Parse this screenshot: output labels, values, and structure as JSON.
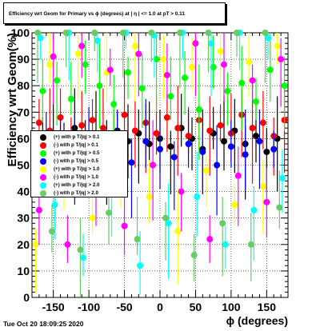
{
  "title": "Efficiency wrt Geom for Primary vs ϕ (degrees) at | η | <= 1.0 at pT > 0.11",
  "timestamp": "Tue Oct 20 18:09:25 2020",
  "colors": {
    "black": "#000000",
    "red": "#ff0000",
    "green": "#00ff00",
    "blue": "#0000ff",
    "yellow": "#ffff00",
    "magenta": "#ff00ff",
    "cyan": "#00ffff",
    "lightgreen": "#66cc66"
  },
  "chart_data": {
    "type": "scatter",
    "title": "Efficiency wrt Geom for Primary vs ϕ (degrees) at | η | <= 1.0 at pT > 0.11",
    "xlabel": "ϕ (degrees)",
    "ylabel": "Efficiency wrt Geom(%)",
    "xlim": [
      -180,
      180
    ],
    "ylim": [
      0,
      100
    ],
    "xticks": [
      -150,
      -100,
      -50,
      0,
      50,
      100,
      150
    ],
    "yticks": [
      0,
      10,
      20,
      30,
      40,
      50,
      60,
      70,
      80,
      90,
      100
    ],
    "grid": true,
    "legend_position": "left-middle",
    "series": [
      {
        "name": "(+) with p T/|q| > 0.1",
        "color": "#000000",
        "x": [
          -165,
          -150,
          -135,
          -120,
          -105,
          -90,
          -75,
          -60,
          -45,
          -30,
          -15,
          0,
          15,
          30,
          45,
          60,
          75,
          90,
          105,
          120,
          135,
          150,
          165
        ],
        "y": [
          62,
          60,
          58,
          64,
          57,
          61,
          55,
          63,
          59,
          62,
          58,
          60,
          57,
          64,
          60,
          56,
          62,
          59,
          63,
          58,
          61,
          55,
          60
        ]
      },
      {
        "name": "(-) with p T/|q| > 0.1",
        "color": "#ff0000",
        "x": [
          -170,
          -155,
          -140,
          -125,
          -110,
          -95,
          -80,
          -65,
          -50,
          -35,
          -20,
          -5,
          10,
          25,
          40,
          55,
          70,
          85,
          100,
          115,
          130,
          145,
          160,
          175
        ],
        "y": [
          66,
          63,
          68,
          62,
          65,
          67,
          64,
          61,
          69,
          63,
          66,
          62,
          68,
          64,
          61,
          67,
          63,
          65,
          62,
          69,
          64,
          66,
          61,
          67
        ]
      },
      {
        "name": "(+) with p T/|q| > 0.5",
        "color": "#00ff00",
        "x": [
          -165,
          -145,
          -125,
          -105,
          -85,
          -65,
          -45,
          -25,
          -5,
          15,
          35,
          55,
          75,
          95,
          115,
          135,
          155,
          175
        ],
        "y": [
          78,
          82,
          75,
          88,
          80,
          73,
          85,
          79,
          90,
          76,
          83,
          71,
          87,
          78,
          81,
          74,
          86,
          80
        ]
      },
      {
        "name": "(-) with p T/|q| > 0.5",
        "color": "#0000ff",
        "x": [
          -160,
          -140,
          -120,
          -100,
          -80,
          -60,
          -40,
          -20,
          0,
          20,
          40,
          60,
          80,
          100,
          120,
          140,
          160
        ],
        "y": [
          55,
          58,
          52,
          60,
          54,
          57,
          51,
          59,
          56,
          53,
          58,
          55,
          50,
          57,
          54,
          59,
          56
        ]
      },
      {
        "name": "(+) with p T/|q| > 1.0",
        "color": "#ffff00",
        "x": [
          -175,
          -155,
          -135,
          -115,
          -95,
          -75,
          -55,
          -35,
          -15,
          5,
          25,
          45,
          65,
          85,
          105,
          125,
          145,
          165
        ],
        "y": [
          20,
          88,
          45,
          92,
          30,
          85,
          50,
          95,
          38,
          90,
          25,
          87,
          48,
          93,
          35,
          89,
          42,
          95
        ]
      },
      {
        "name": "(-) with p T/|q| > 1.0",
        "color": "#ff00ff",
        "x": [
          -170,
          -150,
          -130,
          -110,
          -90,
          -70,
          -50,
          -30,
          -10,
          10,
          30,
          50,
          70,
          90,
          110,
          130,
          150,
          170
        ],
        "y": [
          33,
          91,
          20,
          95,
          44,
          86,
          27,
          92,
          50,
          84,
          40,
          96,
          22,
          88,
          46,
          82,
          36,
          90
        ]
      },
      {
        "name": "(+) with p T/|q| > 2.0",
        "color": "#00ffff",
        "x": [
          -168,
          -148,
          -128,
          -108,
          -88,
          -68,
          -48,
          -28,
          -8,
          12,
          32,
          52,
          72,
          92,
          112,
          132,
          152,
          172
        ],
        "y": [
          98,
          35,
          100,
          15,
          97,
          40,
          100,
          12,
          99,
          28,
          100,
          38,
          96,
          20,
          100,
          33,
          98,
          45
        ]
      },
      {
        "name": "(-) with p T/|q| > 2.0",
        "color": "#66cc66",
        "x": [
          -172,
          -152,
          -132,
          -112,
          -92,
          -72,
          -52,
          -32,
          -12,
          8,
          28,
          48,
          68,
          88,
          108,
          128,
          148,
          168
        ],
        "y": [
          100,
          25,
          100,
          18,
          100,
          32,
          100,
          22,
          100,
          30,
          100,
          16,
          100,
          28,
          100,
          20,
          100,
          34
        ]
      }
    ]
  }
}
